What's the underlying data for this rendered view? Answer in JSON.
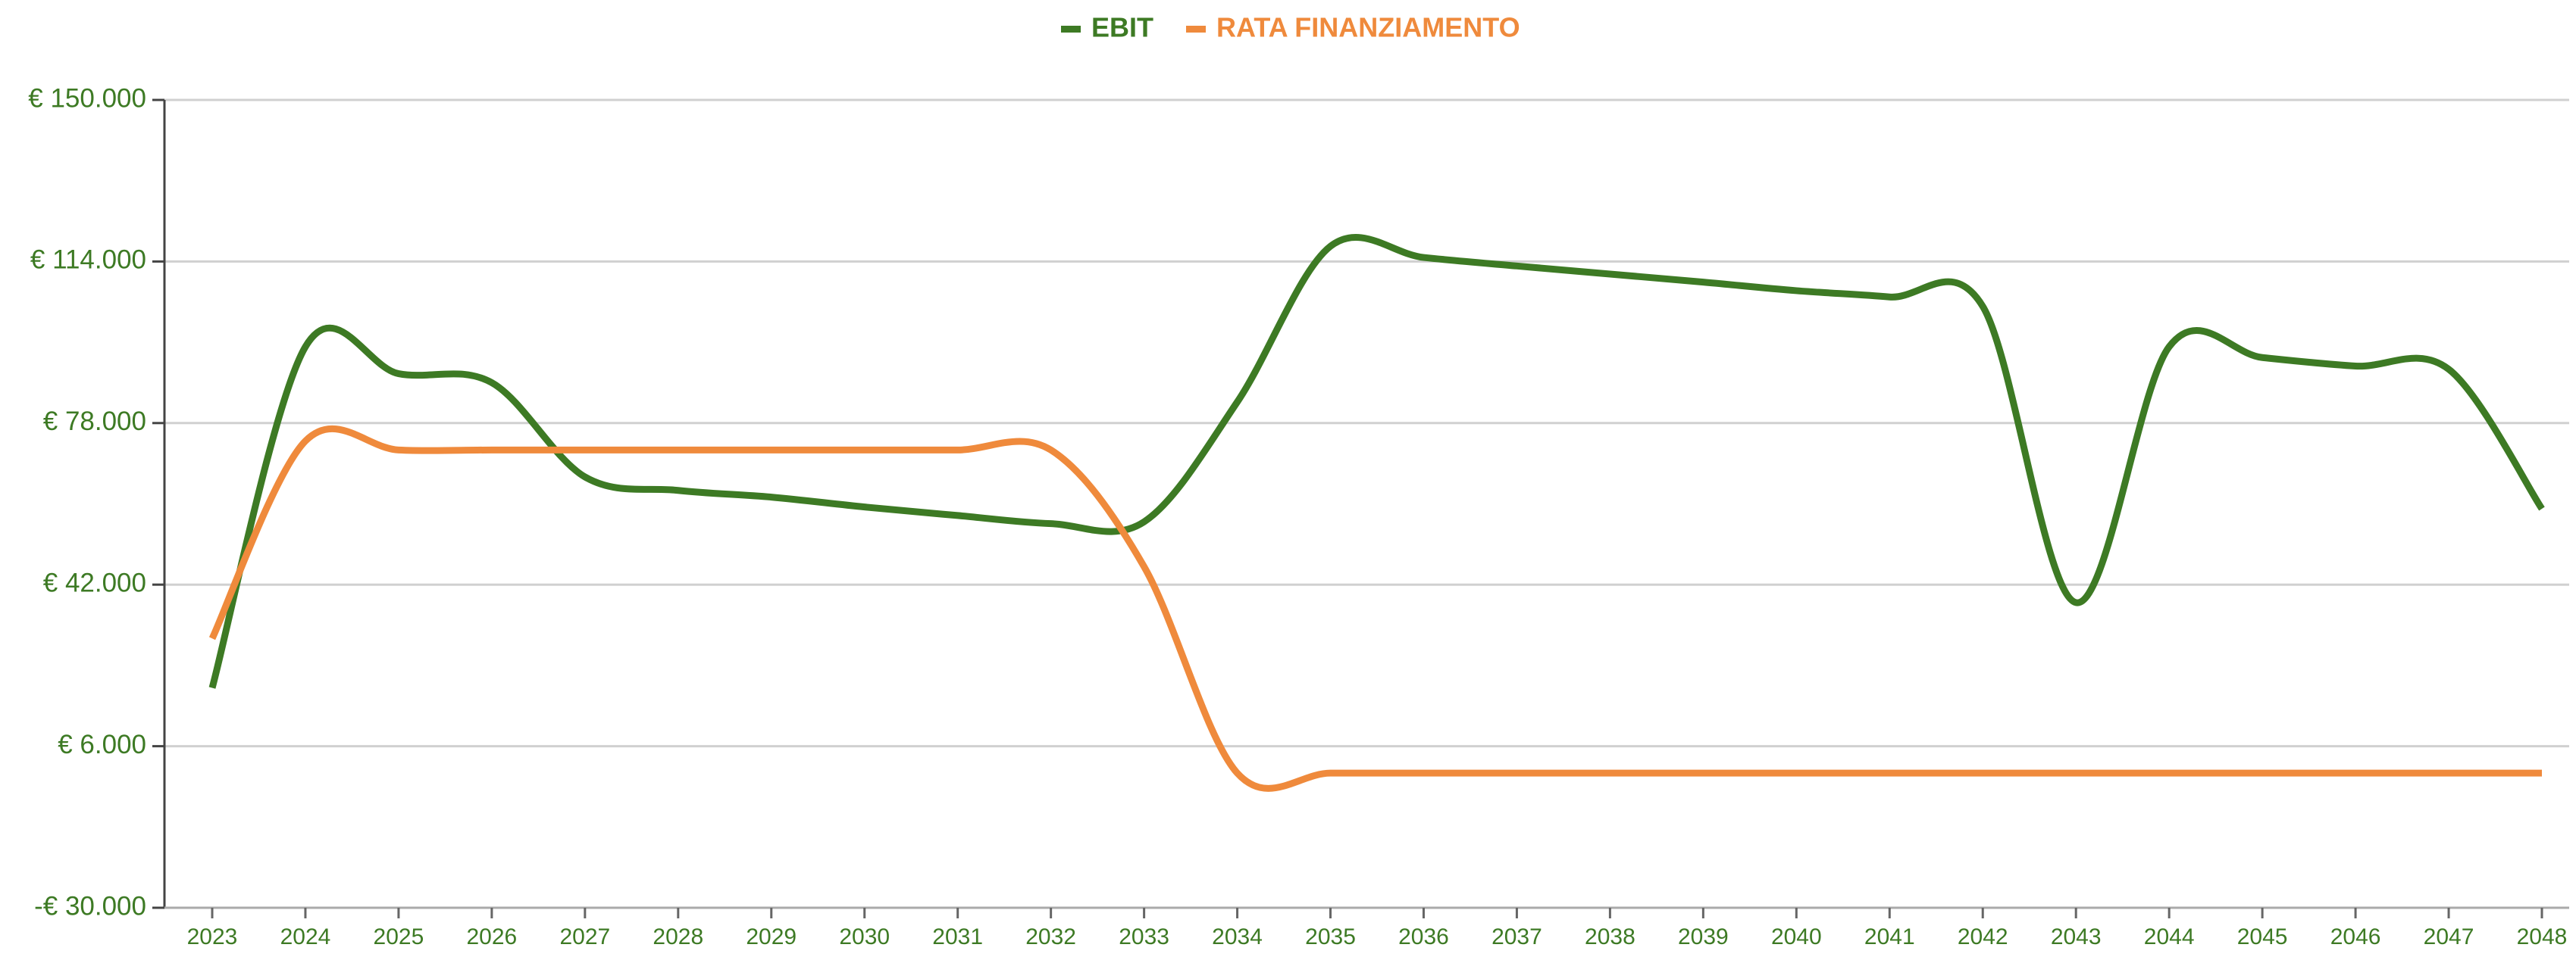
{
  "chart_data": {
    "type": "line",
    "categories": [
      "2023",
      "2024",
      "2025",
      "2026",
      "2027",
      "2028",
      "2029",
      "2030",
      "2031",
      "2032",
      "2033",
      "2034",
      "2035",
      "2036",
      "2037",
      "2038",
      "2039",
      "2040",
      "2041",
      "2042",
      "2043",
      "2044",
      "2045",
      "2046",
      "2047",
      "2048"
    ],
    "series": [
      {
        "name": "EBIT",
        "color": "#3d7a24",
        "values": [
          19000,
          95000,
          89000,
          87000,
          66000,
          63000,
          61500,
          59300,
          57400,
          55600,
          56000,
          82700,
          117400,
          114900,
          113000,
          111200,
          109400,
          107500,
          106100,
          104000,
          38000,
          95000,
          92600,
          90700,
          90000,
          58900
        ]
      },
      {
        "name": "RATA FINANZIAMENTO",
        "color": "#ef8a3c",
        "values": [
          30000,
          74000,
          72000,
          72000,
          72000,
          72000,
          72000,
          72000,
          72000,
          72000,
          46000,
          0,
          0,
          0,
          0,
          0,
          0,
          0,
          0,
          0,
          0,
          0,
          0,
          0,
          0,
          0
        ]
      }
    ],
    "ylim": [
      -30000,
      150000
    ],
    "yticks": [
      {
        "value": -30000,
        "label": "-€ 30.000"
      },
      {
        "value": 6000,
        "label": "€ 6.000"
      },
      {
        "value": 42000,
        "label": "€ 42.000"
      },
      {
        "value": 78000,
        "label": "€ 78.000"
      },
      {
        "value": 114000,
        "label": "€ 114.000"
      },
      {
        "value": 150000,
        "label": "€ 150.000"
      }
    ],
    "grid": true,
    "legend": "top"
  }
}
